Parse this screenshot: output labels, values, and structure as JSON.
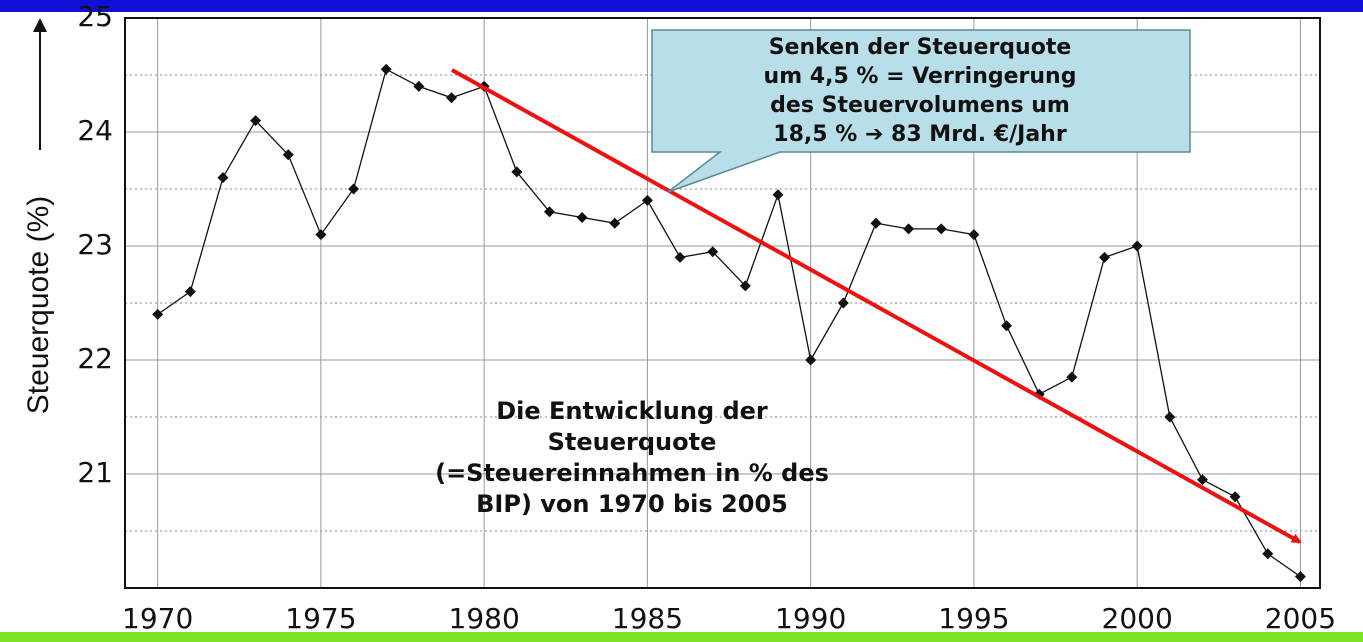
{
  "chart_data": {
    "type": "line",
    "y_label": "Steuerquote (%)",
    "x": [
      1970,
      1971,
      1972,
      1973,
      1974,
      1975,
      1976,
      1977,
      1978,
      1979,
      1980,
      1981,
      1982,
      1983,
      1984,
      1985,
      1986,
      1987,
      1988,
      1989,
      1990,
      1991,
      1992,
      1993,
      1994,
      1995,
      1996,
      1997,
      1998,
      1999,
      2000,
      2001,
      2002,
      2003,
      2004,
      2005
    ],
    "series": [
      {
        "color": "#111111",
        "values": [
          22.4,
          22.6,
          23.6,
          24.1,
          23.8,
          23.1,
          23.5,
          24.55,
          24.4,
          24.3,
          24.4,
          23.65,
          23.3,
          23.25,
          23.2,
          23.4,
          22.9,
          22.95,
          22.65,
          23.45,
          22.0,
          22.5,
          23.2,
          23.15,
          23.15,
          23.1,
          22.3,
          21.7,
          21.85,
          22.9,
          23.0,
          21.5,
          20.95,
          20.8,
          20.3,
          20.1
        ]
      }
    ],
    "xlim": [
      1969,
      2005.6
    ],
    "ylim": [
      20,
      25
    ],
    "xticks": [
      1970,
      1975,
      1980,
      1985,
      1990,
      1995,
      2000,
      2005
    ],
    "yticks": [
      21,
      22,
      23,
      24,
      25
    ],
    "minor_yticks": [
      20.5,
      21.5,
      22.5,
      23.5,
      24.5
    ],
    "grid": true,
    "callout": [
      "Senken der Steuerquote",
      "um 4,5 % = Verringerung",
      "des Steuervolumens um",
      "18,5 % ➔ 83 Mrd. €/Jahr"
    ],
    "annotation": [
      "Die Entwicklung der",
      "Steuerquote",
      "(=Steuereinnahmen in % des",
      "BIP) von 1970 bis 2005"
    ]
  }
}
